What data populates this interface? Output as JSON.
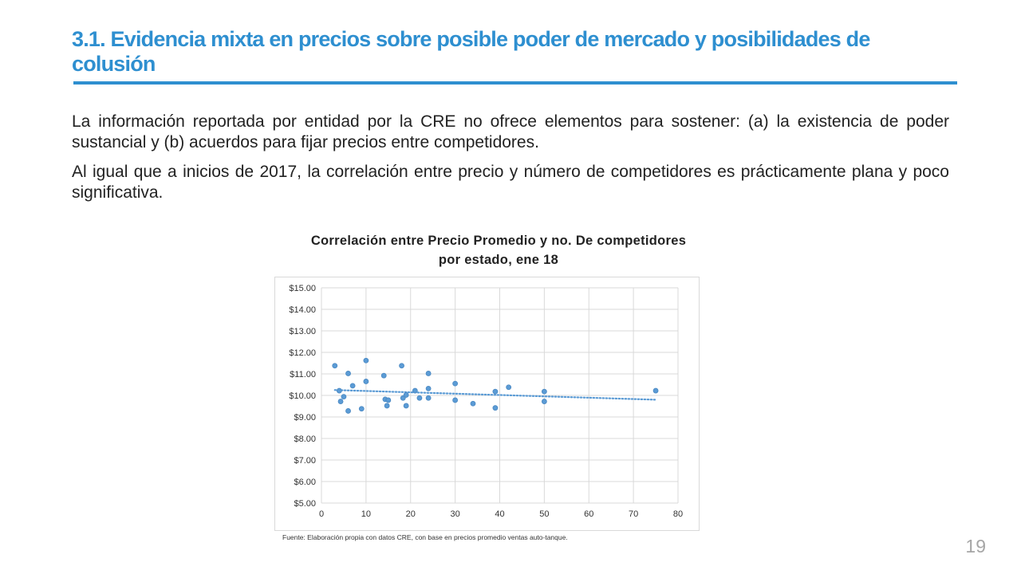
{
  "slide": {
    "title": "3.1. Evidencia mixta en precios sobre posible poder de mercado y posibilidades de colusión",
    "paragraphs": [
      "La información reportada por entidad por la CRE no ofrece elementos para sostener: (a) la existencia de poder sustancial y (b) acuerdos para fijar precios entre competidores.",
      "Al igual que a inicios de 2017, la correlación entre precio y número de competidores es prácticamente plana y poco significativa."
    ],
    "page_number": "19",
    "accent_color": "#2e8fd0"
  },
  "chart_data": {
    "type": "scatter",
    "title_line1": "Correlación entre Precio Promedio y no. De competidores",
    "title_line2": "por estado, ene 18",
    "xlim": [
      0,
      80
    ],
    "ylim": [
      5,
      15
    ],
    "x_ticks": [
      0,
      10,
      20,
      30,
      40,
      50,
      60,
      70,
      80
    ],
    "y_ticks": [
      5,
      6,
      7,
      8,
      9,
      10,
      11,
      12,
      13,
      14,
      15
    ],
    "y_tick_labels": [
      "$5.00",
      "$6.00",
      "$7.00",
      "$8.00",
      "$9.00",
      "$10.00",
      "$11.00",
      "$12.00",
      "$13.00",
      "$14.00",
      "$15.00"
    ],
    "grid": true,
    "points": [
      {
        "x": 3,
        "y": 11.38
      },
      {
        "x": 4,
        "y": 10.22
      },
      {
        "x": 4.3,
        "y": 9.72
      },
      {
        "x": 5,
        "y": 9.94
      },
      {
        "x": 6,
        "y": 11.02
      },
      {
        "x": 6,
        "y": 9.28
      },
      {
        "x": 7,
        "y": 10.45
      },
      {
        "x": 9,
        "y": 9.38
      },
      {
        "x": 10,
        "y": 11.62
      },
      {
        "x": 10,
        "y": 10.65
      },
      {
        "x": 14,
        "y": 10.92
      },
      {
        "x": 14.3,
        "y": 9.82
      },
      {
        "x": 14.7,
        "y": 9.52
      },
      {
        "x": 15,
        "y": 9.78
      },
      {
        "x": 18,
        "y": 11.38
      },
      {
        "x": 18.3,
        "y": 9.88
      },
      {
        "x": 19,
        "y": 10.02
      },
      {
        "x": 19,
        "y": 9.52
      },
      {
        "x": 21,
        "y": 10.22
      },
      {
        "x": 22,
        "y": 9.88
      },
      {
        "x": 24,
        "y": 11.02
      },
      {
        "x": 24,
        "y": 10.32
      },
      {
        "x": 24,
        "y": 9.88
      },
      {
        "x": 30,
        "y": 10.55
      },
      {
        "x": 30,
        "y": 9.78
      },
      {
        "x": 34,
        "y": 9.62
      },
      {
        "x": 39,
        "y": 10.18
      },
      {
        "x": 39,
        "y": 9.42
      },
      {
        "x": 42,
        "y": 10.38
      },
      {
        "x": 50,
        "y": 10.18
      },
      {
        "x": 50,
        "y": 9.72
      },
      {
        "x": 75,
        "y": 10.22
      }
    ],
    "trendline": {
      "x_start": 3,
      "y_start": 10.25,
      "x_end": 75,
      "y_end": 9.8,
      "style": "dotted"
    },
    "series_color": "#5b9bd5",
    "source_note": "Fuente: Elaboración propia con datos CRE, con base en precios promedio ventas auto-tanque."
  }
}
